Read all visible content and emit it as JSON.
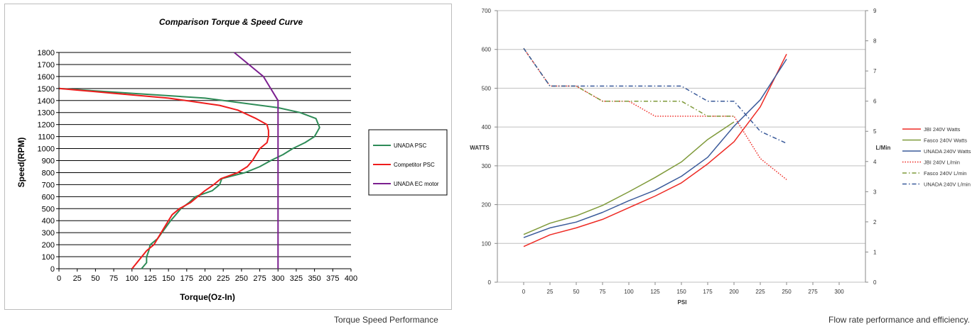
{
  "captions": {
    "left": "Torque Speed Performance",
    "right": "Flow rate performance and efficiency."
  },
  "chart_data": [
    {
      "type": "line",
      "title": "Comparison Torque & Speed Curve",
      "xlabel": "Torque(Oz-In)",
      "ylabel": "Speed(RPM)",
      "xlim": [
        0,
        400
      ],
      "ylim": [
        0,
        1800
      ],
      "xticks": [
        0,
        25,
        50,
        75,
        100,
        125,
        150,
        175,
        200,
        225,
        250,
        275,
        300,
        325,
        350,
        375,
        400
      ],
      "yticks": [
        0,
        100,
        200,
        300,
        400,
        500,
        600,
        700,
        800,
        900,
        1000,
        1100,
        1200,
        1300,
        1400,
        1500,
        1600,
        1700,
        1800
      ],
      "grid": "horizontal",
      "legend_position": "right",
      "series": [
        {
          "name": "UNADA PSC",
          "color": "#2e8b57",
          "points": [
            [
              113,
              0
            ],
            [
              120,
              50
            ],
            [
              120,
              100
            ],
            [
              123,
              150
            ],
            [
              125,
              200
            ],
            [
              135,
              250
            ],
            [
              147,
              350
            ],
            [
              153,
              400
            ],
            [
              160,
              450
            ],
            [
              167,
              500
            ],
            [
              178,
              550
            ],
            [
              187,
              600
            ],
            [
              210,
              650
            ],
            [
              220,
              700
            ],
            [
              223,
              750
            ],
            [
              255,
              800
            ],
            [
              275,
              850
            ],
            [
              290,
              900
            ],
            [
              307,
              950
            ],
            [
              320,
              1000
            ],
            [
              337,
              1050
            ],
            [
              350,
              1100
            ],
            [
              357,
              1175
            ],
            [
              352,
              1250
            ],
            [
              330,
              1300
            ],
            [
              300,
              1340
            ],
            [
              200,
              1420
            ],
            [
              100,
              1460
            ],
            [
              0,
              1500
            ]
          ]
        },
        {
          "name": "Competitor PSC",
          "color": "#ee1c1c",
          "points": [
            [
              100,
              0
            ],
            [
              120,
              150
            ],
            [
              130,
              200
            ],
            [
              140,
              300
            ],
            [
              150,
              400
            ],
            [
              155,
              450
            ],
            [
              165,
              500
            ],
            [
              180,
              550
            ],
            [
              190,
              600
            ],
            [
              200,
              650
            ],
            [
              212,
              700
            ],
            [
              222,
              750
            ],
            [
              245,
              800
            ],
            [
              258,
              850
            ],
            [
              265,
              900
            ],
            [
              270,
              950
            ],
            [
              275,
              1000
            ],
            [
              285,
              1050
            ],
            [
              287,
              1100
            ],
            [
              287,
              1150
            ],
            [
              285,
              1200
            ],
            [
              270,
              1250
            ],
            [
              245,
              1320
            ],
            [
              220,
              1360
            ],
            [
              150,
              1420
            ],
            [
              75,
              1460
            ],
            [
              0,
              1500
            ]
          ]
        },
        {
          "name": "UNADA EC motor",
          "color": "#7b1f8f",
          "points": [
            [
              300,
              0
            ],
            [
              300,
              1400
            ],
            [
              280,
              1600
            ],
            [
              240,
              1800
            ]
          ]
        }
      ]
    },
    {
      "type": "line",
      "title": "",
      "xlabel": "PSI",
      "ylabel": "WATTS",
      "y2label": "L/Min",
      "xlim": [
        -25,
        325
      ],
      "ylim": [
        0,
        700
      ],
      "y2lim": [
        0,
        9
      ],
      "xticks": [
        0,
        25,
        50,
        75,
        100,
        125,
        150,
        175,
        200,
        225,
        250,
        275,
        300
      ],
      "yticks": [
        0,
        100,
        200,
        300,
        400,
        500,
        600,
        700
      ],
      "y2ticks": [
        0,
        1,
        2,
        3,
        4,
        5,
        6,
        7,
        8,
        9
      ],
      "grid": "horizontal",
      "legend_position": "right",
      "series": [
        {
          "name": "JBI 240V Watts",
          "color": "#ee2a24",
          "axis": "left",
          "dash": "solid",
          "x": [
            0,
            25,
            50,
            75,
            100,
            125,
            150,
            175,
            200,
            225,
            250
          ],
          "y": [
            92,
            122,
            140,
            162,
            192,
            222,
            256,
            305,
            362,
            452,
            588
          ]
        },
        {
          "name": "Fasco 240V Watts",
          "color": "#7f9a3a",
          "axis": "left",
          "dash": "solid",
          "x": [
            0,
            25,
            50,
            75,
            100,
            125,
            150,
            175,
            200
          ],
          "y": [
            123,
            152,
            171,
            198,
            233,
            270,
            310,
            368,
            413
          ]
        },
        {
          "name": "UNADA 240V Watts",
          "color": "#3a5a9a",
          "axis": "left",
          "dash": "solid",
          "x": [
            0,
            25,
            50,
            75,
            100,
            125,
            150,
            175,
            200,
            225,
            250
          ],
          "y": [
            115,
            140,
            155,
            180,
            210,
            237,
            273,
            322,
            402,
            470,
            575
          ]
        },
        {
          "name": "JBI 240V L/min",
          "color": "#ee2a24",
          "axis": "right",
          "dash": "dot",
          "x": [
            0,
            25,
            50,
            75,
            100,
            125,
            150,
            175,
            200,
            225,
            250
          ],
          "y": [
            7.75,
            6.5,
            6.5,
            6.0,
            6.0,
            5.5,
            5.5,
            5.5,
            5.5,
            4.1,
            3.4
          ]
        },
        {
          "name": "Fasco 240V L/min",
          "color": "#7f9a3a",
          "axis": "right",
          "dash": "dashdot",
          "x": [
            0,
            25,
            50,
            75,
            100,
            125,
            150,
            175,
            200
          ],
          "y": [
            7.75,
            6.5,
            6.5,
            6.0,
            6.0,
            6.0,
            6.0,
            5.5,
            5.5
          ]
        },
        {
          "name": "UNADA 240V L/min",
          "color": "#3a5a9a",
          "axis": "right",
          "dash": "dashdot",
          "x": [
            0,
            25,
            50,
            75,
            100,
            125,
            150,
            175,
            200,
            225,
            250
          ],
          "y": [
            7.75,
            6.5,
            6.5,
            6.5,
            6.5,
            6.5,
            6.5,
            6.0,
            6.0,
            5.0,
            4.6
          ]
        }
      ]
    }
  ]
}
